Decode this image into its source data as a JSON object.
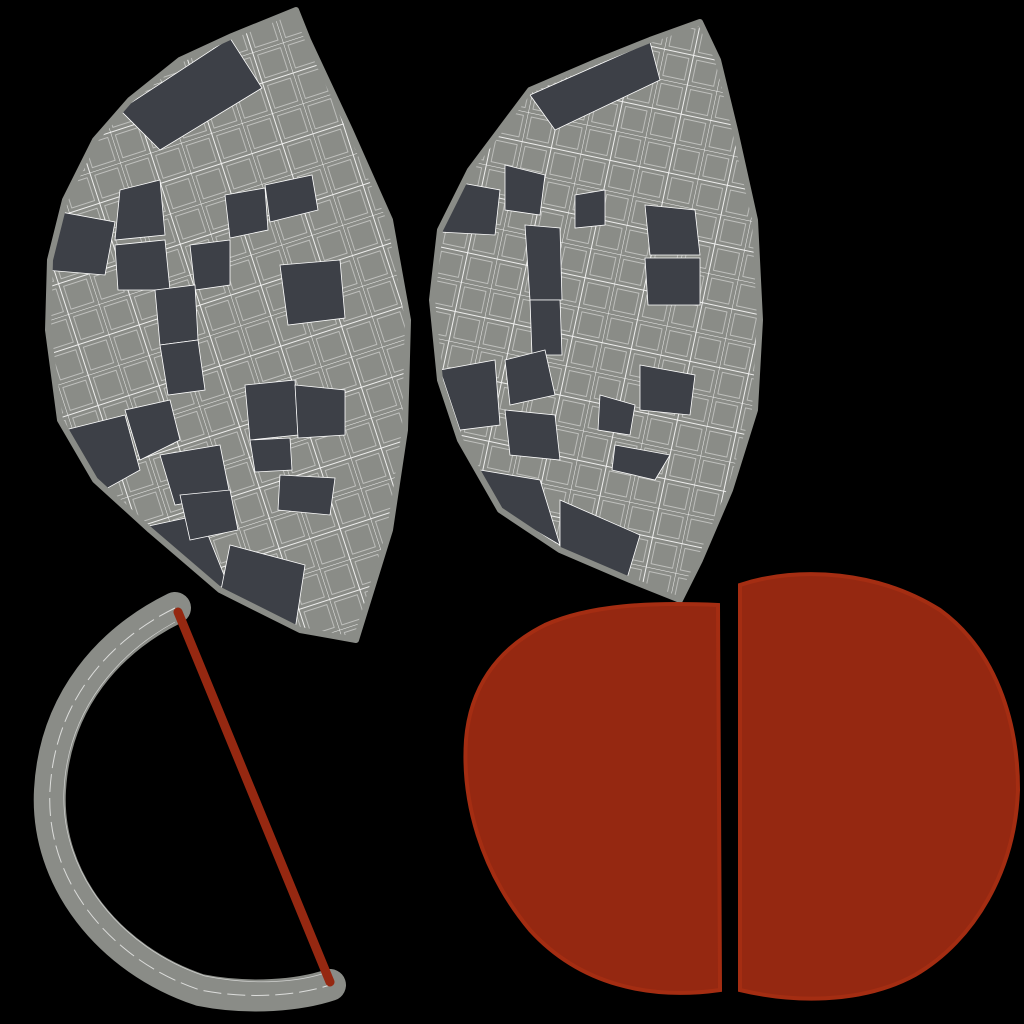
{
  "colors": {
    "background": "#000000",
    "uv_light": "#8a8c87",
    "uv_dark": "#3d4047",
    "wire": "#ffffff",
    "red_fill": "#952811",
    "red_edge": "#a42d12"
  },
  "islands": [
    {
      "name": "uv-island-left-wing",
      "kind": "checker-shell"
    },
    {
      "name": "uv-island-right-wing",
      "kind": "checker-shell"
    },
    {
      "name": "uv-island-arc-strip",
      "kind": "strip"
    },
    {
      "name": "uv-island-red-seam-line",
      "kind": "seam"
    },
    {
      "name": "uv-island-red-disc-left",
      "kind": "solid"
    },
    {
      "name": "uv-island-red-disc-right",
      "kind": "solid"
    }
  ]
}
